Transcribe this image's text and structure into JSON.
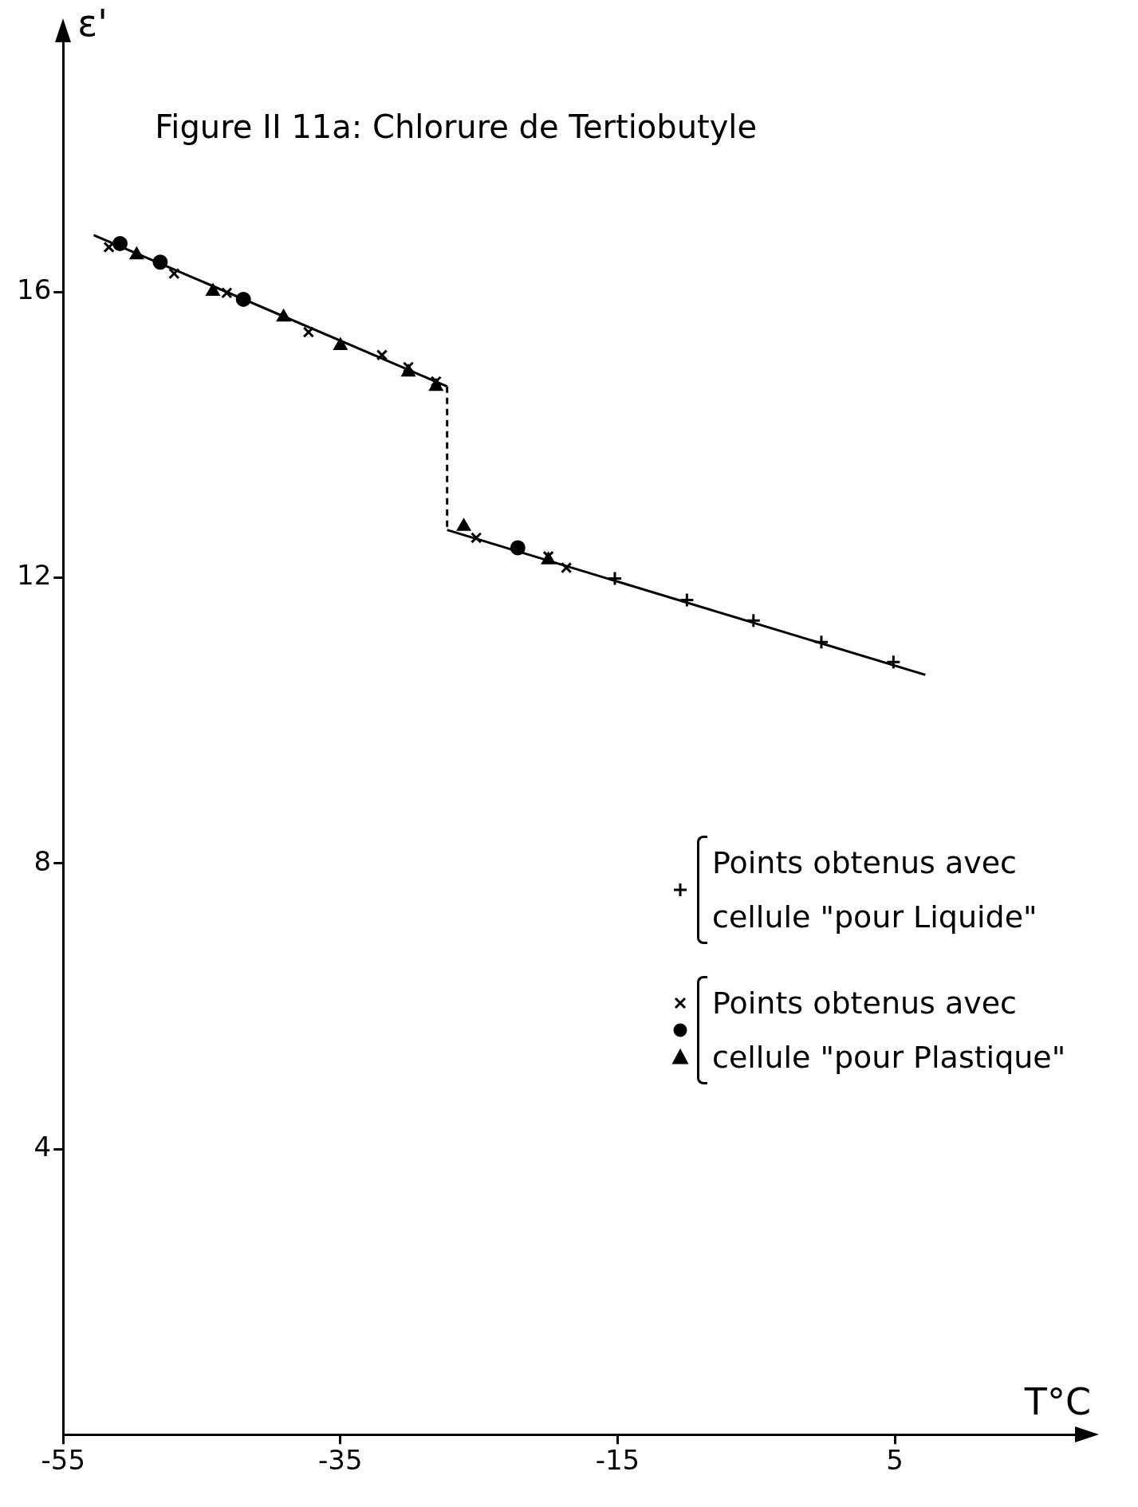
{
  "chart_data": {
    "type": "scatter",
    "title": "Figure II 11a: Chlorure de Tertiobutyle",
    "xlabel": "T°C",
    "ylabel": "ε'",
    "xlim": [
      -55,
      18
    ],
    "xticks": [
      -55,
      -35,
      -15,
      5
    ],
    "ylim": [
      0,
      19.5
    ],
    "yticks": [
      4,
      8,
      12,
      16
    ],
    "grid": false,
    "legend": "right",
    "series": [
      {
        "name": "Points obtenus avec cellule \"pour Liquide\"",
        "color": "#000000",
        "marker": "cross",
        "x": [
          -15.2,
          -10,
          -5.2,
          -0.3,
          4.9
        ],
        "values": [
          11.99,
          11.69,
          11.4,
          11.1,
          10.82
        ]
      },
      {
        "name": "Points obtenus avec cellule \"pour Plastique\"",
        "color": "#000000",
        "marker": "x",
        "x": [
          -51.7,
          -47,
          -43.2,
          -37.3,
          -32,
          -30.1,
          -28.1,
          -25.2,
          -20,
          -18.7
        ],
        "values": [
          16.63,
          16.26,
          15.99,
          15.44,
          15.12,
          14.95,
          14.75,
          12.56,
          12.3,
          12.14
        ]
      },
      {
        "color": "#000000",
        "marker": "circle",
        "x": [
          -50.9,
          -48,
          -42,
          -22.2
        ],
        "values": [
          16.68,
          16.42,
          15.9,
          12.42
        ]
      },
      {
        "color": "#000000",
        "marker": "triangle",
        "x": [
          -49.7,
          -44.2,
          -39.1,
          -35,
          -30.1,
          -28.1,
          -26.1,
          -20
        ],
        "values": [
          16.52,
          16.01,
          15.65,
          15.25,
          14.88,
          14.68,
          12.72,
          12.25
        ]
      },
      {
        "type": "line",
        "color": "#000000",
        "marker": "none",
        "line_style": "solid",
        "x": [
          -52.8,
          -27.3
        ],
        "values": [
          16.8,
          14.68
        ]
      },
      {
        "type": "line",
        "color": "#000000",
        "marker": "none",
        "line_style": "dashed",
        "x": [
          -27.3,
          -27.3
        ],
        "values": [
          14.68,
          12.67
        ]
      },
      {
        "type": "line",
        "color": "#000000",
        "marker": "none",
        "line_style": "solid",
        "x": [
          -27.3,
          7.2
        ],
        "values": [
          12.67,
          10.64
        ]
      }
    ]
  }
}
